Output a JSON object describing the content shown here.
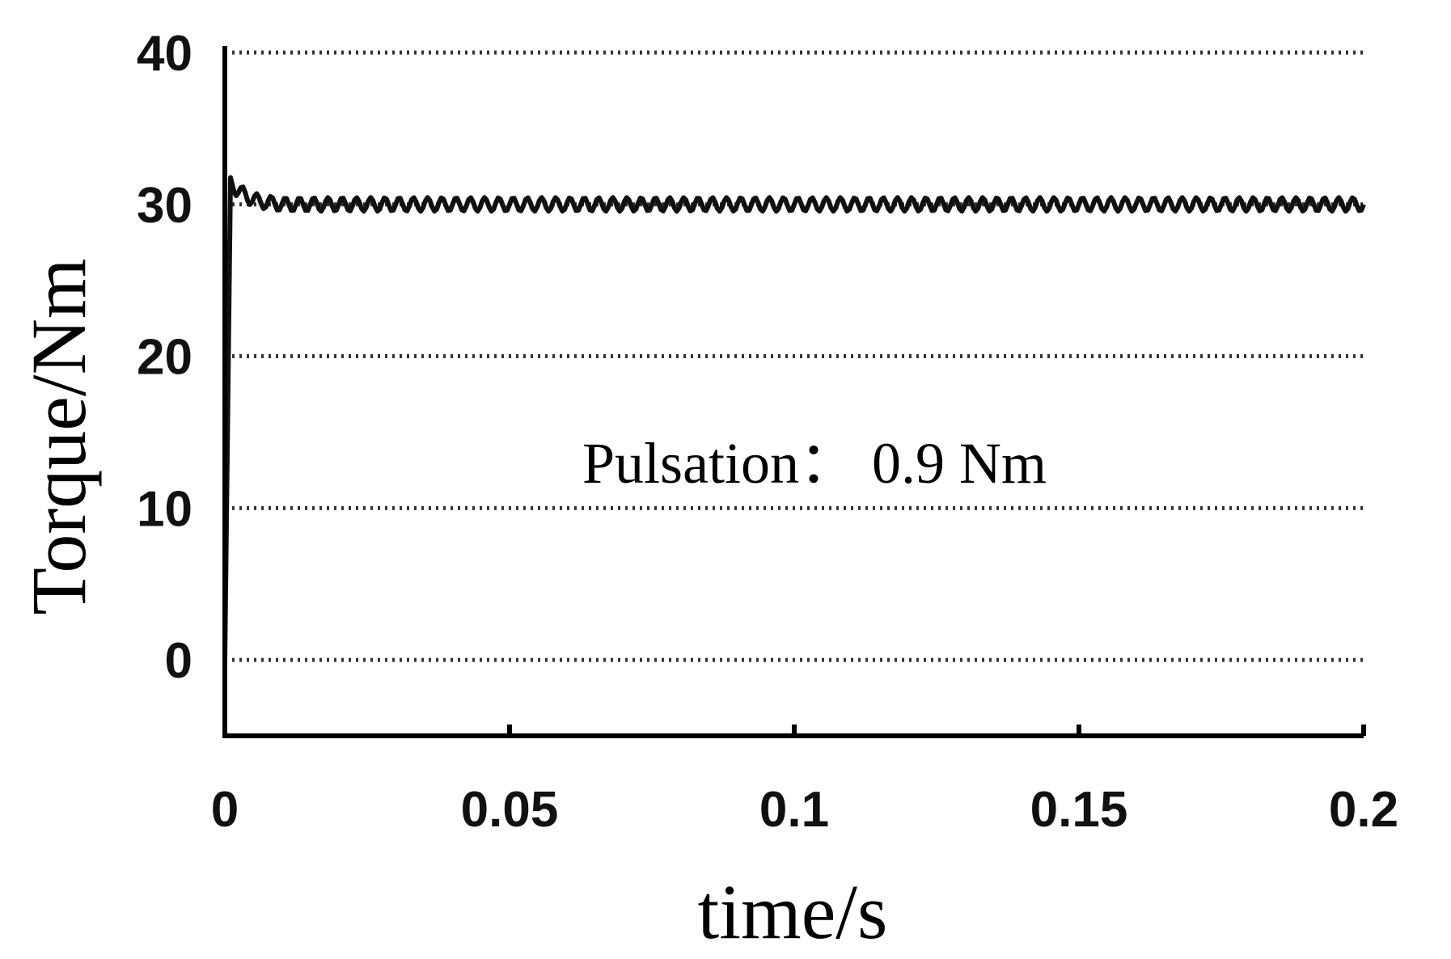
{
  "chart_data": {
    "type": "line",
    "xlabel": "time/s",
    "ylabel": "Torque/Nm",
    "xlim": [
      0,
      0.2
    ],
    "ylim": [
      -5,
      40
    ],
    "x_ticks": [
      "0",
      "0.05",
      "0.1",
      "0.15",
      "0.2"
    ],
    "y_ticks": [
      "0",
      "10",
      "20",
      "30",
      "40"
    ],
    "grid": "horizontal-dotted",
    "annotation": "Pulsation： 0.9 Nm",
    "series": [
      {
        "x": [
          0,
          0.001,
          0.002,
          0.004,
          0.006,
          0.008,
          0.01,
          0.015,
          0.02,
          0.03,
          0.05,
          0.075,
          0.1,
          0.125,
          0.15,
          0.175,
          0.2
        ],
        "values": [
          0,
          31.5,
          31.0,
          30.5,
          30.2,
          30.1,
          30.0,
          30.0,
          30.0,
          30.0,
          30.0,
          30.0,
          30.0,
          30.0,
          30.0,
          30.0,
          30.0
        ]
      }
    ],
    "ripple_amplitude": 0.45,
    "colors": {
      "line": "#111111",
      "axis": "#000000",
      "grid": "#333333"
    }
  }
}
